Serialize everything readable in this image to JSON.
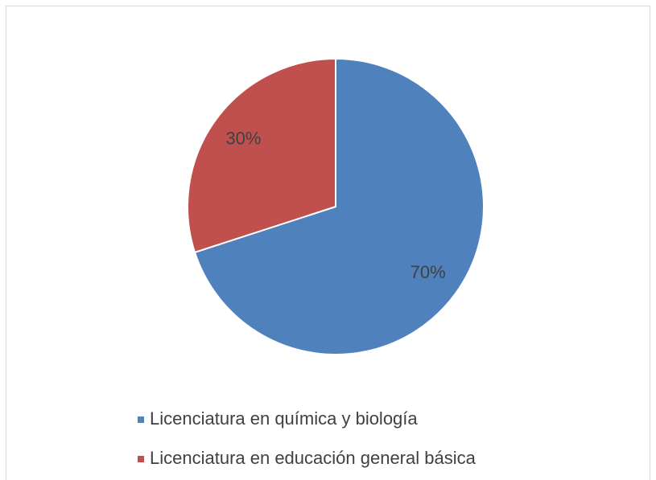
{
  "chart_data": {
    "type": "pie",
    "categories": [
      "Licenciatura en química y biología",
      "Licenciatura en educación general básica"
    ],
    "values": [
      70,
      30
    ],
    "value_labels": [
      "70%",
      "30%"
    ],
    "colors": [
      "#4f81bd",
      "#c0504d"
    ],
    "legend": "bottom"
  }
}
